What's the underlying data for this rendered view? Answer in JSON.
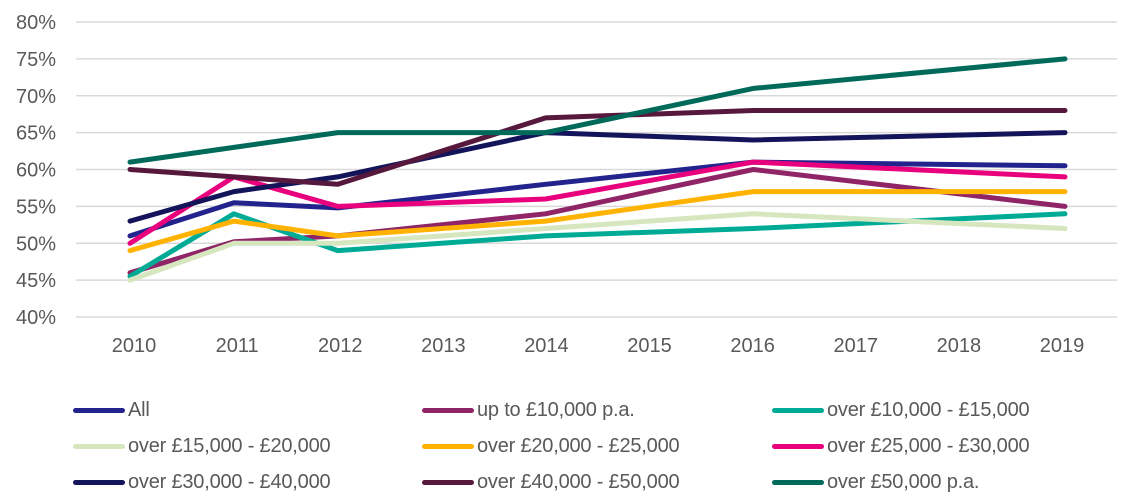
{
  "chart_data": {
    "type": "line",
    "title": "",
    "xlabel": "",
    "ylabel": "",
    "x": [
      "2010",
      "2011",
      "2012",
      "2013",
      "2014",
      "2015",
      "2016",
      "2017",
      "2018",
      "2019"
    ],
    "ylim": [
      40,
      80
    ],
    "yticks": [
      "80%",
      "75%",
      "70%",
      "65%",
      "60%",
      "55%",
      "50%",
      "45%",
      "40%"
    ],
    "ytick_values": [
      80,
      75,
      70,
      65,
      60,
      55,
      50,
      45,
      40
    ],
    "grid": true,
    "legend_position": "bottom",
    "series": [
      {
        "name": "All",
        "color": "#23238E",
        "values": [
          51,
          55.5,
          54.8,
          null,
          58,
          null,
          61,
          null,
          null,
          60.5
        ]
      },
      {
        "name": "up to £10,000 p.a.",
        "color": "#8F2566",
        "values": [
          46,
          50.2,
          51,
          null,
          54,
          null,
          60,
          null,
          null,
          55
        ]
      },
      {
        "name": "over £10,000 - £15,000",
        "color": "#00AB96",
        "values": [
          45.5,
          54,
          49,
          null,
          51,
          null,
          52,
          null,
          null,
          54
        ]
      },
      {
        "name": "over £15,000 - £20,000",
        "color": "#D6E6BE",
        "values": [
          45,
          50,
          50,
          null,
          52,
          null,
          54,
          null,
          null,
          52
        ]
      },
      {
        "name": "over £20,000 - £25,000",
        "color": "#FFB200",
        "values": [
          49,
          53,
          51,
          null,
          53,
          null,
          57,
          null,
          null,
          57
        ]
      },
      {
        "name": "over £25,000 - £30,000",
        "color": "#E8007D",
        "values": [
          50,
          59,
          55,
          null,
          56,
          null,
          61,
          null,
          null,
          59
        ]
      },
      {
        "name": "over £30,000 - £40,000",
        "color": "#14145A",
        "values": [
          53,
          57,
          59,
          null,
          65,
          null,
          64,
          null,
          null,
          65
        ]
      },
      {
        "name": "over £40,000 - £50,000",
        "color": "#56183D",
        "values": [
          60,
          59,
          58,
          null,
          67,
          null,
          68,
          null,
          null,
          68
        ]
      },
      {
        "name": "over £50,000 p.a.",
        "color": "#006A5A",
        "values": [
          61,
          63,
          65,
          null,
          65,
          null,
          71,
          null,
          null,
          75
        ]
      }
    ]
  }
}
